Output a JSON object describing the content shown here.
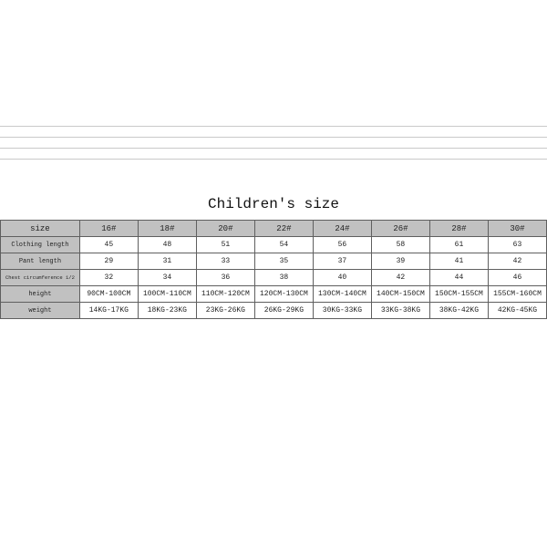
{
  "title": "Children's size",
  "table": {
    "type": "table",
    "background_color": "#ffffff",
    "header_bg": "#c1c1c1",
    "label_bg": "#c1c1c1",
    "border_color": "#5f5f5f",
    "font_family": "Courier New",
    "header_fontsize": 9,
    "cell_fontsize": 8,
    "label_fontsize": 7,
    "small_label_fontsize": 5.5,
    "columns": [
      "size",
      "16#",
      "18#",
      "20#",
      "22#",
      "24#",
      "26#",
      "28#",
      "30#"
    ],
    "rows": [
      {
        "label": "Clothing length",
        "small": false,
        "cells": [
          "45",
          "48",
          "51",
          "54",
          "56",
          "58",
          "61",
          "63"
        ]
      },
      {
        "label": "Pant length",
        "small": false,
        "cells": [
          "29",
          "31",
          "33",
          "35",
          "37",
          "39",
          "41",
          "42"
        ]
      },
      {
        "label": "Chest circumference 1/2",
        "small": true,
        "cells": [
          "32",
          "34",
          "36",
          "38",
          "40",
          "42",
          "44",
          "46"
        ]
      },
      {
        "label": "height",
        "small": false,
        "cells": [
          "90CM-100CM",
          "100CM-110CM",
          "110CM-120CM",
          "120CM-130CM",
          "130CM-140CM",
          "140CM-150CM",
          "150CM-155CM",
          "155CM-160CM"
        ]
      },
      {
        "label": "weight",
        "small": false,
        "cells": [
          "14KG-17KG",
          "18KG-23KG",
          "23KG-26KG",
          "26KG-29KG",
          "30KG-33KG",
          "33KG-38KG",
          "38KG-42KG",
          "42KG-45KG"
        ]
      }
    ]
  },
  "decorations": {
    "top_line_color": "#c9c9c9",
    "top_line_count": 4,
    "top_line_spacing": 11
  }
}
